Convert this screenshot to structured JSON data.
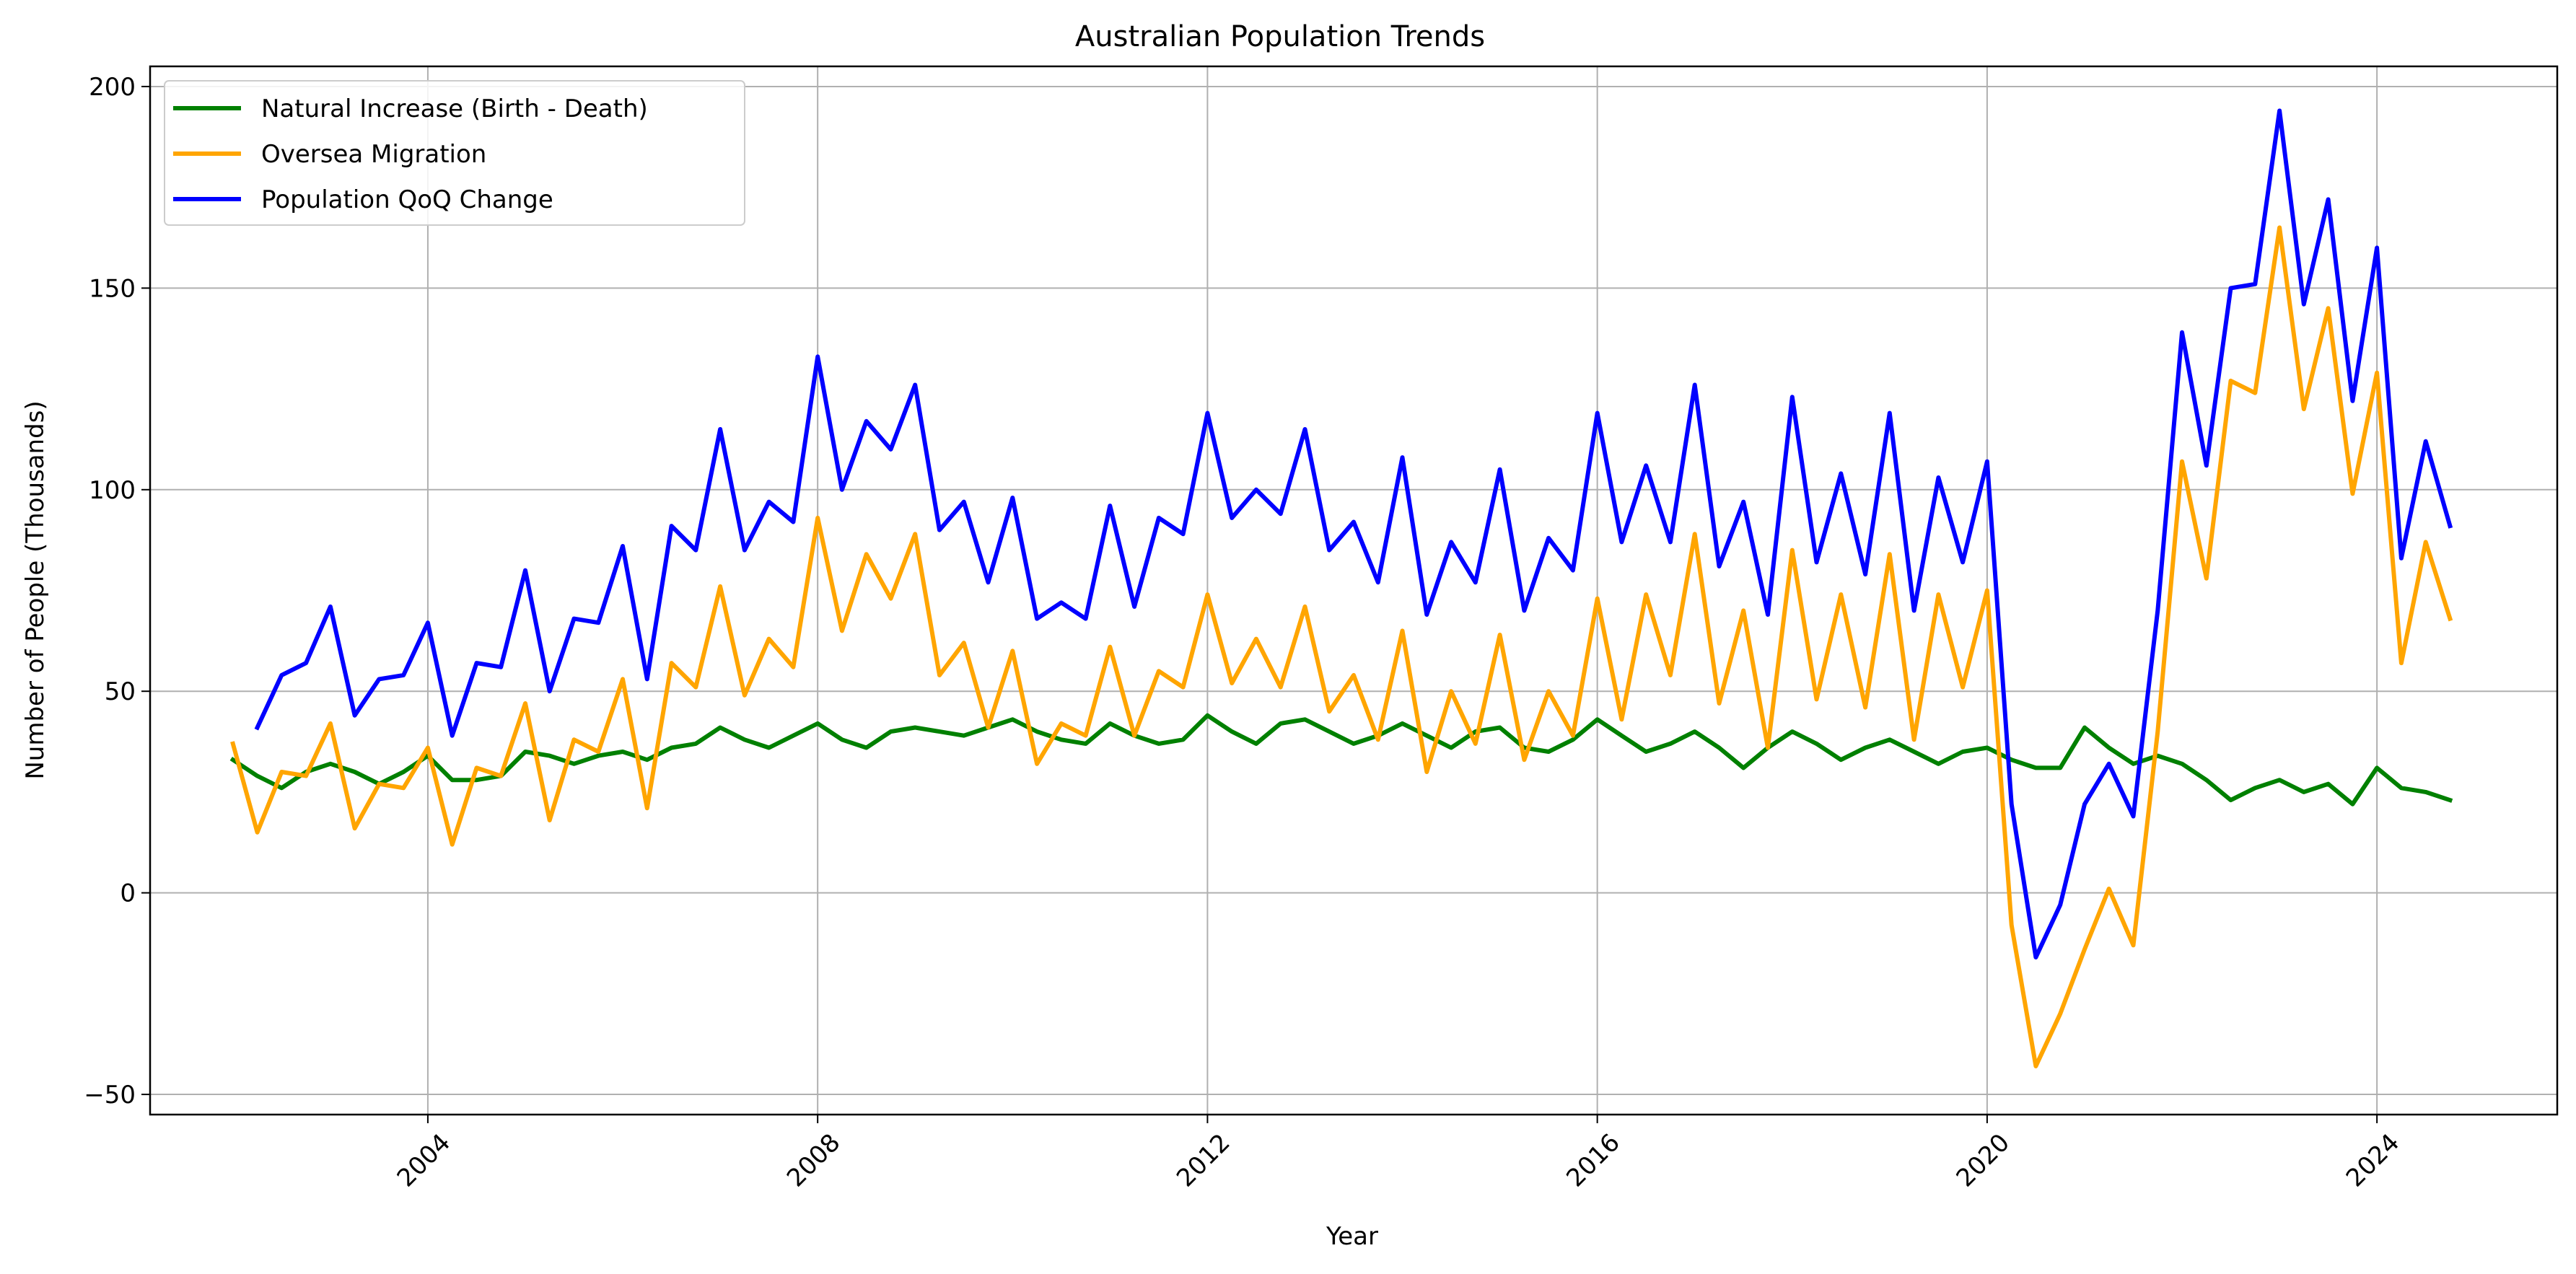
{
  "chart_data": {
    "type": "line",
    "title": "Australian Population Trends",
    "xlabel": "Year",
    "ylabel": "Number of People (Thousands)",
    "xlim": [
      2001.15,
      2025.85
    ],
    "ylim": [
      -55,
      205
    ],
    "xticks": [
      2004,
      2008,
      2012,
      2016,
      2020,
      2024
    ],
    "yticks": [
      -50,
      0,
      50,
      100,
      150,
      200
    ],
    "ytick_labels": [
      "−50",
      "0",
      "50",
      "100",
      "150",
      "200"
    ],
    "grid": true,
    "legend_position": "top-left",
    "x": [
      2002.0,
      2002.25,
      2002.5,
      2002.75,
      2003.0,
      2003.25,
      2003.5,
      2003.75,
      2004.0,
      2004.25,
      2004.5,
      2004.75,
      2005.0,
      2005.25,
      2005.5,
      2005.75,
      2006.0,
      2006.25,
      2006.5,
      2006.75,
      2007.0,
      2007.25,
      2007.5,
      2007.75,
      2008.0,
      2008.25,
      2008.5,
      2008.75,
      2009.0,
      2009.25,
      2009.5,
      2009.75,
      2010.0,
      2010.25,
      2010.5,
      2010.75,
      2011.0,
      2011.25,
      2011.5,
      2011.75,
      2012.0,
      2012.25,
      2012.5,
      2012.75,
      2013.0,
      2013.25,
      2013.5,
      2013.75,
      2014.0,
      2014.25,
      2014.5,
      2014.75,
      2015.0,
      2015.25,
      2015.5,
      2015.75,
      2016.0,
      2016.25,
      2016.5,
      2016.75,
      2017.0,
      2017.25,
      2017.5,
      2017.75,
      2018.0,
      2018.25,
      2018.5,
      2018.75,
      2019.0,
      2019.25,
      2019.5,
      2019.75,
      2020.0,
      2020.25,
      2020.5,
      2020.75,
      2021.0,
      2021.25,
      2021.5,
      2021.75,
      2022.0,
      2022.25,
      2022.5,
      2022.75,
      2023.0,
      2023.25,
      2023.5,
      2023.75,
      2024.0,
      2024.25,
      2024.5,
      2024.75
    ],
    "series": [
      {
        "name": "Natural Increase (Birth - Death)",
        "color": "#008000",
        "values": [
          33,
          29,
          26,
          30,
          32,
          30,
          27,
          30,
          34,
          28,
          28,
          29,
          35,
          34,
          32,
          34,
          35,
          33,
          36,
          37,
          41,
          38,
          36,
          39,
          42,
          38,
          36,
          40,
          41,
          40,
          39,
          41,
          43,
          40,
          38,
          37,
          42,
          39,
          37,
          38,
          44,
          40,
          37,
          42,
          43,
          40,
          37,
          39,
          42,
          39,
          36,
          40,
          41,
          36,
          35,
          38,
          43,
          39,
          35,
          37,
          40,
          36,
          31,
          36,
          40,
          37,
          33,
          36,
          38,
          35,
          32,
          35,
          36,
          33,
          31,
          31,
          41,
          36,
          32,
          34,
          32,
          28,
          23,
          26,
          28,
          25,
          27,
          22,
          31,
          26,
          25,
          23
        ]
      },
      {
        "name": "Oversea Migration",
        "color": "#FFA500",
        "values": [
          37,
          15,
          30,
          29,
          42,
          16,
          27,
          26,
          36,
          12,
          31,
          29,
          47,
          18,
          38,
          35,
          53,
          21,
          57,
          51,
          76,
          49,
          63,
          56,
          93,
          65,
          84,
          73,
          89,
          54,
          62,
          41,
          60,
          32,
          42,
          39,
          61,
          39,
          55,
          51,
          74,
          52,
          63,
          51,
          71,
          45,
          54,
          38,
          65,
          30,
          50,
          37,
          64,
          33,
          50,
          39,
          73,
          43,
          74,
          54,
          89,
          47,
          70,
          36,
          85,
          48,
          74,
          46,
          84,
          38,
          74,
          51,
          75,
          -8,
          -43,
          -30,
          -14,
          1,
          -13,
          40,
          107,
          78,
          127,
          124,
          165,
          120,
          145,
          99,
          129,
          57,
          87,
          68
        ]
      },
      {
        "name": "Population QoQ Change",
        "color": "#0000FF",
        "values": [
          null,
          41,
          54,
          57,
          71,
          44,
          53,
          54,
          67,
          39,
          57,
          56,
          80,
          50,
          68,
          67,
          86,
          53,
          91,
          85,
          115,
          85,
          97,
          92,
          133,
          100,
          117,
          110,
          126,
          90,
          97,
          77,
          98,
          68,
          72,
          68,
          96,
          71,
          93,
          89,
          119,
          93,
          100,
          94,
          115,
          85,
          92,
          77,
          108,
          69,
          87,
          77,
          105,
          70,
          88,
          80,
          119,
          87,
          106,
          87,
          126,
          81,
          97,
          69,
          123,
          82,
          104,
          79,
          119,
          70,
          103,
          82,
          107,
          22,
          -16,
          -3,
          22,
          32,
          19,
          70,
          139,
          106,
          150,
          151,
          194,
          146,
          172,
          122,
          160,
          83,
          112,
          91
        ]
      }
    ]
  }
}
